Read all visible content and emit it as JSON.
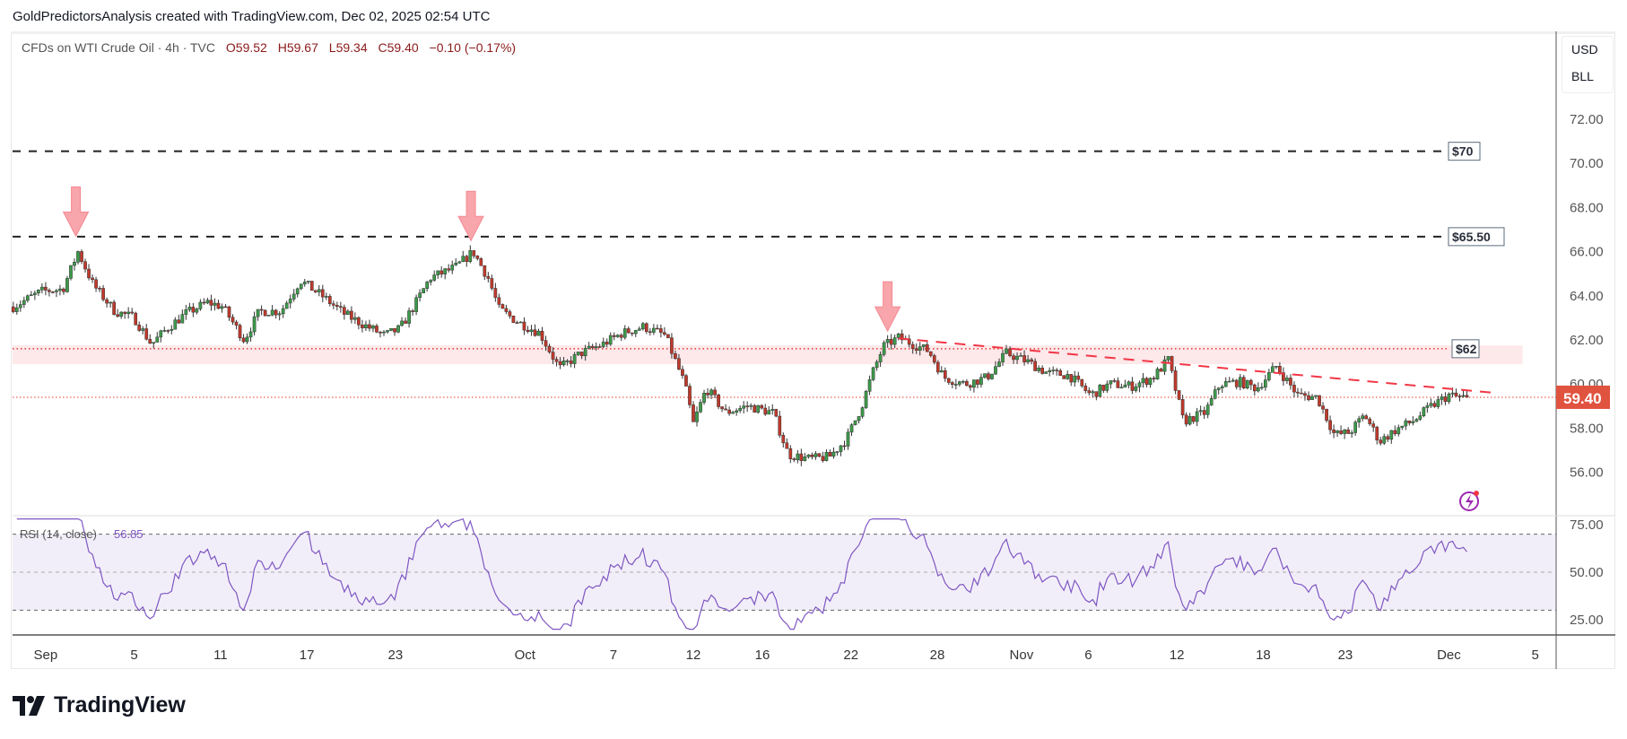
{
  "header": {
    "attribution": "GoldPredictorsAnalysis created with TradingView.com, Dec 02, 2025 02:54 UTC"
  },
  "legend": {
    "symbol": "CFDs on WTI Crude Oil · 4h · TVC",
    "open": "O59.52",
    "high": "H59.67",
    "low": "L59.34",
    "close": "C59.40",
    "change": "−0.10 (−0.17%)"
  },
  "units": {
    "currency": "USD",
    "unit": "BLL"
  },
  "logo": {
    "text": "TradingView"
  },
  "colors": {
    "up": "#3d9a4a",
    "down": "#c0392b",
    "rsi": "#7e57c2",
    "zone": "#fde8ea",
    "current": "#e0533f"
  },
  "chart_data": {
    "type": "candlestick",
    "interval": "4h",
    "x_unit": "trading days since Sep 1",
    "bars_per_day": 6,
    "price_waypoints": [
      [
        -1.5,
        63.5
      ],
      [
        -0.2,
        64.2
      ],
      [
        0.8,
        64.3
      ],
      [
        1.5,
        66.0
      ],
      [
        2.2,
        64.5
      ],
      [
        3.2,
        63.3
      ],
      [
        4.1,
        63.0
      ],
      [
        4.9,
        61.8
      ],
      [
        5.6,
        62.5
      ],
      [
        6.5,
        63.2
      ],
      [
        7.5,
        63.7
      ],
      [
        8.2,
        63.5
      ],
      [
        9.2,
        62.0
      ],
      [
        9.9,
        63.3
      ],
      [
        10.9,
        63.3
      ],
      [
        11.8,
        64.7
      ],
      [
        12.8,
        64.0
      ],
      [
        13.8,
        63.2
      ],
      [
        14.7,
        62.7
      ],
      [
        15.7,
        62.2
      ],
      [
        16.4,
        62.5
      ],
      [
        17.1,
        63.6
      ],
      [
        17.8,
        64.8
      ],
      [
        19.0,
        65.3
      ],
      [
        19.8,
        66.0
      ],
      [
        20.5,
        64.8
      ],
      [
        21.0,
        63.4
      ],
      [
        21.9,
        62.8
      ],
      [
        22.9,
        62.3
      ],
      [
        23.8,
        60.7
      ],
      [
        24.8,
        61.4
      ],
      [
        25.8,
        61.8
      ],
      [
        26.7,
        62.3
      ],
      [
        27.7,
        62.6
      ],
      [
        28.7,
        62.2
      ],
      [
        29.6,
        60.0
      ],
      [
        30.0,
        58.2
      ],
      [
        30.6,
        59.8
      ],
      [
        31.5,
        58.7
      ],
      [
        32.5,
        59.0
      ],
      [
        33.7,
        58.7
      ],
      [
        34.4,
        56.8
      ],
      [
        35.4,
        56.6
      ],
      [
        36.3,
        56.7
      ],
      [
        37.1,
        57.5
      ],
      [
        37.8,
        59.0
      ],
      [
        38.3,
        60.5
      ],
      [
        38.8,
        61.7
      ],
      [
        39.5,
        62.1
      ],
      [
        40.2,
        61.8
      ],
      [
        40.9,
        61.5
      ],
      [
        41.6,
        60.3
      ],
      [
        42.6,
        60.0
      ],
      [
        43.6,
        60.3
      ],
      [
        44.5,
        61.4
      ],
      [
        45.5,
        61.0
      ],
      [
        46.4,
        60.5
      ],
      [
        47.4,
        60.4
      ],
      [
        48.4,
        59.5
      ],
      [
        49.3,
        60.0
      ],
      [
        50.3,
        59.9
      ],
      [
        51.3,
        60.3
      ],
      [
        52.0,
        61.1
      ],
      [
        52.7,
        58.3
      ],
      [
        53.7,
        58.7
      ],
      [
        54.4,
        60.0
      ],
      [
        55.3,
        60.1
      ],
      [
        56.1,
        59.8
      ],
      [
        57.0,
        60.8
      ],
      [
        58.0,
        59.5
      ],
      [
        58.9,
        59.4
      ],
      [
        59.7,
        57.7
      ],
      [
        60.4,
        57.8
      ],
      [
        61.1,
        58.6
      ],
      [
        61.8,
        57.4
      ],
      [
        62.5,
        57.9
      ],
      [
        63.3,
        58.3
      ],
      [
        64.2,
        59.0
      ],
      [
        65.0,
        59.5
      ],
      [
        65.4,
        59.4
      ],
      [
        65.9,
        59.4
      ]
    ],
    "last_close": 59.4,
    "y_ticks": [
      "72.00",
      "70.00",
      "68.00",
      "66.00",
      "64.00",
      "62.00",
      "60.00",
      "58.00",
      "56.00"
    ],
    "y_tick_values": [
      72,
      70,
      68,
      66,
      64,
      62,
      60,
      58,
      56
    ],
    "ylim": [
      55.0,
      74.1
    ],
    "x_ticks": [
      {
        "label": "Sep",
        "t": 0
      },
      {
        "label": "5",
        "t": 4.1
      },
      {
        "label": "11",
        "t": 8.1
      },
      {
        "label": "17",
        "t": 12.1
      },
      {
        "label": "23",
        "t": 16.2
      },
      {
        "label": "Oct",
        "t": 22.2
      },
      {
        "label": "7",
        "t": 26.3
      },
      {
        "label": "12",
        "t": 30.0
      },
      {
        "label": "16",
        "t": 33.2
      },
      {
        "label": "22",
        "t": 37.3
      },
      {
        "label": "28",
        "t": 41.3
      },
      {
        "label": "Nov",
        "t": 45.2
      },
      {
        "label": "6",
        "t": 48.3
      },
      {
        "label": "12",
        "t": 52.4
      },
      {
        "label": "18",
        "t": 56.4
      },
      {
        "label": "23",
        "t": 60.2
      },
      {
        "label": "Dec",
        "t": 65.0
      },
      {
        "label": "5",
        "t": 69.0
      }
    ],
    "current_price_label": "59.40",
    "annotations": {
      "levels": [
        {
          "label": "$70",
          "price": 70.55,
          "style": "dashed"
        },
        {
          "label": "$65.50",
          "price": 66.68,
          "style": "dashed"
        }
      ],
      "zone": {
        "label": "$62",
        "line": 61.6,
        "top": 61.75,
        "bottom": 60.9
      },
      "trendline": {
        "from": [
          39.5,
          62.07
        ],
        "to": [
          67.1,
          59.6
        ]
      },
      "arrows": [
        {
          "t": 1.4,
          "price": 66.7
        },
        {
          "t": 19.7,
          "price": 66.5
        },
        {
          "t": 39.0,
          "price": 62.4
        }
      ]
    },
    "rsi": {
      "label": "RSI (14, close)",
      "value": "56.85",
      "period": 14,
      "bands": [
        70,
        50,
        30
      ],
      "y_ticks": [
        "75.00",
        "50.00",
        "25.00"
      ],
      "y_tick_values": [
        75,
        50,
        25
      ]
    }
  }
}
